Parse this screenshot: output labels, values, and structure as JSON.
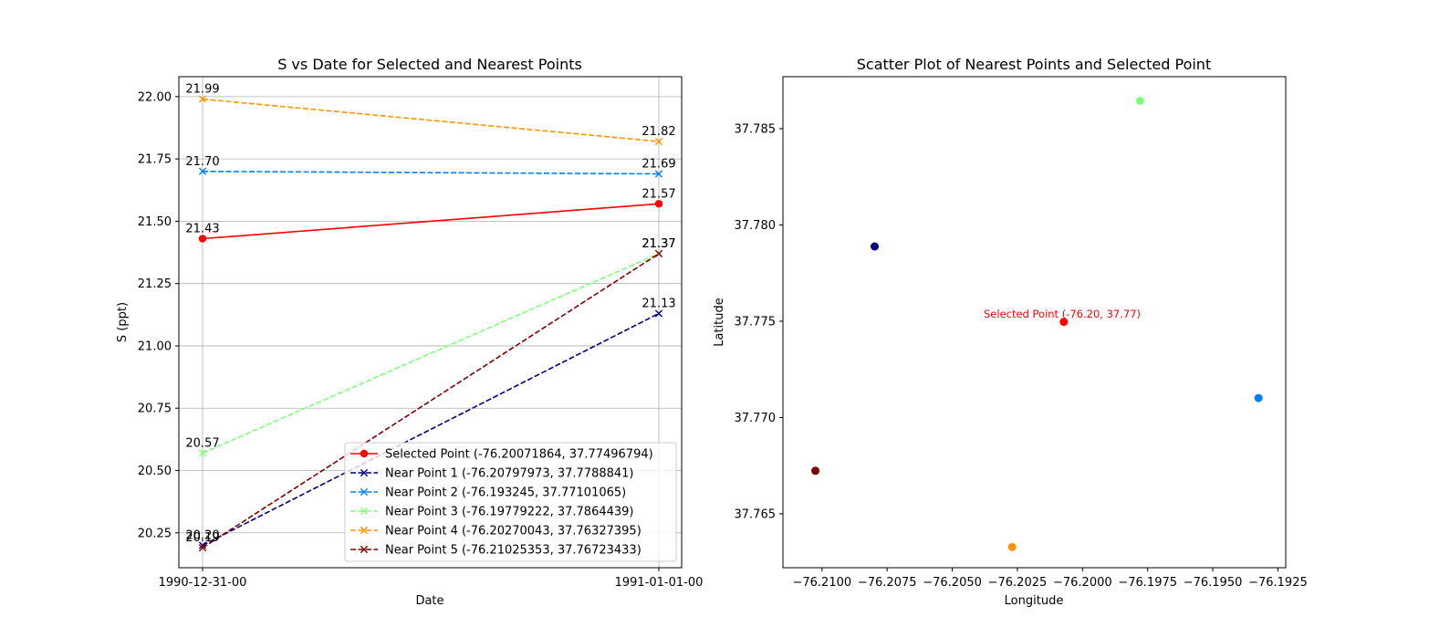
{
  "chart_data": [
    {
      "type": "line",
      "title": "S vs Date for Selected and Nearest Points",
      "xlabel": "Date",
      "ylabel": "S (ppt)",
      "categories": [
        "1990-12-31-00",
        "1991-01-01-00"
      ],
      "ylim": [
        20.11,
        22.08
      ],
      "yticks": [
        "20.25",
        "20.50",
        "20.75",
        "21.00",
        "21.25",
        "21.50",
        "21.75",
        "22.00"
      ],
      "grid": true,
      "legend_position": "lower-right",
      "series": [
        {
          "name": "Selected Point (-76.20071864, 37.77496794)",
          "color": "#ff0000",
          "marker": "circle",
          "dashed": false,
          "values": [
            21.43,
            21.57
          ],
          "labels": [
            "21.43",
            "21.57"
          ]
        },
        {
          "name": "Near Point 1 (-76.20797973, 37.7788841)",
          "color": "#000080",
          "marker": "x",
          "dashed": true,
          "values": [
            20.2,
            21.13
          ],
          "labels": [
            "20.20",
            "21.13"
          ]
        },
        {
          "name": "Near Point 2 (-76.193245, 37.77101065)",
          "color": "#0080ff",
          "marker": "x",
          "dashed": true,
          "values": [
            21.7,
            21.69
          ],
          "labels": [
            "21.70",
            "21.69"
          ]
        },
        {
          "name": "Near Point 3 (-76.19779222, 37.7864439)",
          "color": "#7dff7a",
          "marker": "x",
          "dashed": true,
          "values": [
            20.57,
            21.37
          ],
          "labels": [
            "20.57",
            "21.37"
          ]
        },
        {
          "name": "Near Point 4 (-76.20270043, 37.76327395)",
          "color": "#ff9400",
          "marker": "x",
          "dashed": true,
          "values": [
            21.99,
            21.82
          ],
          "labels": [
            "21.99",
            "21.82"
          ]
        },
        {
          "name": "Near Point 5 (-76.21025353, 37.76723433)",
          "color": "#800000",
          "marker": "x",
          "dashed": true,
          "values": [
            20.19,
            21.37
          ],
          "labels": [
            "20.19",
            "21.37"
          ]
        }
      ]
    },
    {
      "type": "scatter",
      "title": "Scatter Plot of Nearest Points and Selected Point",
      "xlabel": "Longitude",
      "ylabel": "Latitude",
      "xlim": [
        -76.2115,
        -76.1922
      ],
      "ylim": [
        37.7622,
        37.7877
      ],
      "xticks": [
        -76.21,
        -76.2075,
        -76.205,
        -76.2025,
        -76.2,
        -76.1975,
        -76.195,
        -76.1925
      ],
      "xtick_labels": [
        "−76.2100",
        "−76.2075",
        "−76.2050",
        "−76.2025",
        "−76.2000",
        "−76.1975",
        "−76.1950",
        "−76.1925"
      ],
      "yticks": [
        37.765,
        37.77,
        37.775,
        37.78,
        37.785
      ],
      "ytick_labels": [
        "37.765",
        "37.770",
        "37.775",
        "37.780",
        "37.785"
      ],
      "grid": false,
      "annotation": "Selected Point (-76.20, 37.77)",
      "points": [
        {
          "x": -76.20071864,
          "y": 37.77496794,
          "color": "#ff0000"
        },
        {
          "x": -76.20797973,
          "y": 37.7788841,
          "color": "#000080"
        },
        {
          "x": -76.193245,
          "y": 37.77101065,
          "color": "#0080ff"
        },
        {
          "x": -76.19779222,
          "y": 37.7864439,
          "color": "#7dff7a"
        },
        {
          "x": -76.20270043,
          "y": 37.76327395,
          "color": "#ff9400"
        },
        {
          "x": -76.21025353,
          "y": 37.76723433,
          "color": "#800000"
        }
      ]
    }
  ]
}
